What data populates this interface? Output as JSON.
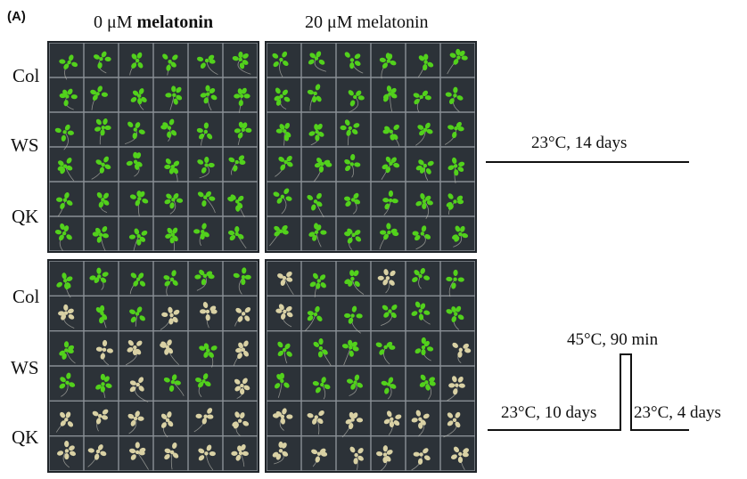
{
  "panel_label": "(A)",
  "columns": [
    {
      "concentration": "0 μM",
      "compound": "melatonin"
    },
    {
      "concentration": "20 μM",
      "compound": "melatonin"
    }
  ],
  "row_labels": {
    "top": [
      "Col",
      "WS",
      "QK"
    ],
    "bottom": [
      "Col",
      "WS",
      "QK"
    ]
  },
  "conditions": {
    "control": "23°C, 14 days",
    "heat_pre": "23°C, 10 days",
    "heat_shock": "45°C, 90 min",
    "heat_post": "23°C, 4 days"
  },
  "colors": {
    "plate": "#2c3238",
    "grid": "#8a9096",
    "healthy_seedling": "#52d11c",
    "bleached_seedling": "#d9d1a4"
  },
  "plates": {
    "rows": 6,
    "cols": 6,
    "top_left": "gggggggggggggggggggggggggggggggggggg",
    "top_right": "gggggggggggggggggggggggggggggggggggg",
    "bottom_left": "ggggggbggbbbgbbbgbggbggbbbbbbbbbbbbb",
    "bottom_right": "bggbggbggggggggggbgggggbbbbbbbbbbbbb"
  }
}
